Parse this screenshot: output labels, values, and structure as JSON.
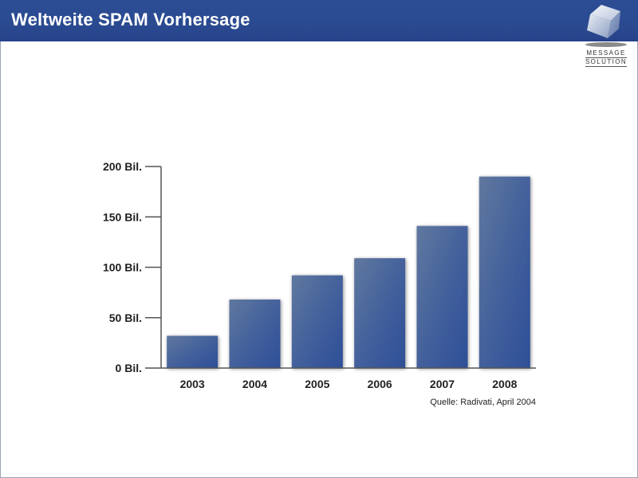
{
  "header": {
    "title": "Weltweite SPAM Vorhersage",
    "brand_line1": "Message",
    "brand_line2": "Solution"
  },
  "colors": {
    "header_bg": "#2c4c95",
    "bar": "#3b5b9c",
    "bar_light": "#5a78b3",
    "axis": "#555555"
  },
  "chart_data": {
    "type": "bar",
    "categories": [
      "2003",
      "2004",
      "2005",
      "2006",
      "2007",
      "2008"
    ],
    "values": [
      32,
      68,
      92,
      109,
      141,
      190
    ],
    "ylim": [
      0,
      200
    ],
    "yticks": [
      0,
      50,
      100,
      150,
      200
    ],
    "ytick_labels": [
      "0 Bil.",
      "50 Bil.",
      "100 Bil.",
      "150 Bil.",
      "200 Bil."
    ],
    "title": "",
    "xlabel": "",
    "ylabel": "",
    "grid": false,
    "source": "Quelle: Radivati, April 2004"
  }
}
